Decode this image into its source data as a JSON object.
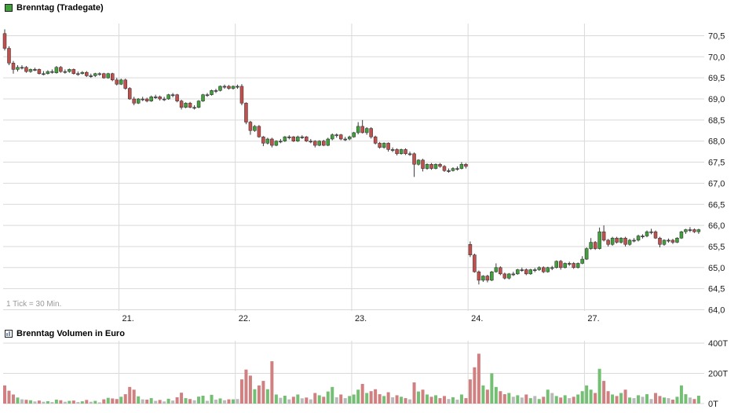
{
  "colors": {
    "grid": "#d9d9d9",
    "axis_text": "#1a1a1a"
  },
  "chart_data": [
    {
      "type": "candlestick",
      "title": "Brenntag (Tradegate)",
      "note": "1 Tick = 30 Min.",
      "interval_per_tick_minutes": 30,
      "legend_position": "top-left",
      "grid": true,
      "y_axis": {
        "min": 64.0,
        "max": 70.75,
        "tick_step": 0.5,
        "ticks": [
          {
            "v": 70.5,
            "label": "70,5"
          },
          {
            "v": 70.0,
            "label": "70,0"
          },
          {
            "v": 69.5,
            "label": "69,5"
          },
          {
            "v": 69.0,
            "label": "69,0"
          },
          {
            "v": 68.5,
            "label": "68,5"
          },
          {
            "v": 68.0,
            "label": "68,0"
          },
          {
            "v": 67.5,
            "label": "67,5"
          },
          {
            "v": 67.0,
            "label": "67,0"
          },
          {
            "v": 66.5,
            "label": "66,5"
          },
          {
            "v": 66.0,
            "label": "66,0"
          },
          {
            "v": 65.5,
            "label": "65,5"
          },
          {
            "v": 65.0,
            "label": "65,0"
          },
          {
            "v": 64.5,
            "label": "64,5"
          },
          {
            "v": 64.0,
            "label": "64,0"
          }
        ]
      },
      "x_axis": {
        "days": [
          {
            "index": 27,
            "label": "21."
          },
          {
            "index": 54,
            "label": "22."
          },
          {
            "index": 81,
            "label": "23."
          },
          {
            "index": 108,
            "label": "24."
          },
          {
            "index": 135,
            "label": "27."
          }
        ]
      },
      "colors": {
        "up": "#41a03c",
        "down": "#c0504d",
        "doji": "#5a5a5a",
        "wick": "#3a3a3a"
      },
      "candles": [
        [
          70.55,
          70.65,
          70.15,
          70.2
        ],
        [
          70.2,
          70.25,
          69.8,
          69.85
        ],
        [
          69.85,
          69.9,
          69.6,
          69.7
        ],
        [
          69.7,
          69.8,
          69.65,
          69.75
        ],
        [
          69.75,
          69.8,
          69.7,
          69.75
        ],
        [
          69.75,
          69.78,
          69.62,
          69.65
        ],
        [
          69.65,
          69.72,
          69.62,
          69.7
        ],
        [
          69.7,
          69.74,
          69.66,
          69.7
        ],
        [
          69.7,
          69.72,
          69.58,
          69.6
        ],
        [
          69.6,
          69.66,
          69.56,
          69.6
        ],
        [
          69.6,
          69.68,
          69.58,
          69.65
        ],
        [
          69.65,
          69.7,
          69.6,
          69.65
        ],
        [
          69.62,
          69.78,
          69.6,
          69.75
        ],
        [
          69.75,
          69.78,
          69.62,
          69.65
        ],
        [
          69.65,
          69.7,
          69.6,
          69.65
        ],
        [
          69.65,
          69.72,
          69.62,
          69.7
        ],
        [
          69.7,
          69.72,
          69.58,
          69.6
        ],
        [
          69.6,
          69.65,
          69.55,
          69.6
        ],
        [
          69.6,
          69.66,
          69.58,
          69.63
        ],
        [
          69.63,
          69.66,
          69.52,
          69.55
        ],
        [
          69.55,
          69.6,
          69.5,
          69.55
        ],
        [
          69.55,
          69.62,
          69.52,
          69.6
        ],
        [
          69.6,
          69.63,
          69.55,
          69.6
        ],
        [
          69.6,
          69.62,
          69.48,
          69.5
        ],
        [
          69.5,
          69.62,
          69.48,
          69.6
        ],
        [
          69.6,
          69.62,
          69.42,
          69.45
        ],
        [
          69.45,
          69.5,
          69.32,
          69.35
        ],
        [
          69.35,
          69.48,
          69.33,
          69.45
        ],
        [
          69.45,
          69.48,
          69.22,
          69.25
        ],
        [
          69.25,
          69.28,
          68.98,
          69.0
        ],
        [
          69.0,
          69.05,
          68.85,
          68.9
        ],
        [
          68.9,
          69.02,
          68.88,
          69.0
        ],
        [
          69.0,
          69.05,
          68.95,
          69.0
        ],
        [
          69.0,
          69.03,
          68.92,
          68.95
        ],
        [
          68.95,
          69.08,
          68.93,
          69.05
        ],
        [
          69.05,
          69.1,
          69.0,
          69.05
        ],
        [
          69.05,
          69.08,
          68.96,
          69.0
        ],
        [
          69.0,
          69.05,
          68.95,
          69.0
        ],
        [
          69.0,
          69.12,
          68.98,
          69.1
        ],
        [
          69.1,
          69.14,
          69.04,
          69.1
        ],
        [
          69.1,
          69.12,
          68.92,
          68.95
        ],
        [
          68.95,
          68.98,
          68.75,
          68.8
        ],
        [
          68.8,
          68.92,
          68.78,
          68.9
        ],
        [
          68.9,
          68.93,
          68.78,
          68.8
        ],
        [
          68.8,
          68.85,
          68.75,
          68.8
        ],
        [
          68.8,
          68.97,
          68.78,
          68.95
        ],
        [
          68.95,
          69.12,
          68.93,
          69.1
        ],
        [
          69.1,
          69.14,
          69.05,
          69.1
        ],
        [
          69.1,
          69.22,
          69.08,
          69.2
        ],
        [
          69.2,
          69.24,
          69.14,
          69.2
        ],
        [
          69.2,
          69.32,
          69.18,
          69.3
        ],
        [
          69.3,
          69.34,
          69.24,
          69.3
        ],
        [
          69.3,
          69.33,
          69.22,
          69.25
        ],
        [
          69.25,
          69.32,
          69.22,
          69.3
        ],
        [
          69.3,
          69.34,
          69.24,
          69.3
        ],
        [
          69.3,
          69.35,
          68.85,
          68.9
        ],
        [
          68.9,
          68.92,
          68.4,
          68.45
        ],
        [
          68.45,
          68.48,
          68.15,
          68.25
        ],
        [
          68.25,
          68.38,
          68.22,
          68.35
        ],
        [
          68.35,
          68.38,
          68.08,
          68.1
        ],
        [
          68.1,
          68.12,
          67.88,
          67.95
        ],
        [
          67.95,
          68.08,
          67.92,
          68.05
        ],
        [
          68.05,
          68.08,
          67.85,
          67.9
        ],
        [
          67.9,
          68.02,
          67.88,
          68.0
        ],
        [
          68.0,
          68.05,
          67.95,
          68.0
        ],
        [
          68.0,
          68.12,
          67.98,
          68.1
        ],
        [
          68.1,
          68.14,
          68.04,
          68.1
        ],
        [
          68.1,
          68.12,
          67.98,
          68.0
        ],
        [
          68.0,
          68.13,
          67.98,
          68.1
        ],
        [
          68.1,
          68.14,
          68.05,
          68.1
        ],
        [
          68.1,
          68.12,
          67.98,
          68.0
        ],
        [
          68.0,
          68.05,
          67.95,
          68.0
        ],
        [
          68.0,
          68.02,
          67.85,
          67.9
        ],
        [
          67.9,
          68.02,
          67.88,
          68.0
        ],
        [
          68.0,
          68.03,
          67.88,
          67.9
        ],
        [
          67.9,
          68.08,
          67.88,
          68.05
        ],
        [
          68.05,
          68.18,
          68.02,
          68.15
        ],
        [
          68.15,
          68.18,
          68.08,
          68.15
        ],
        [
          68.15,
          68.17,
          68.02,
          68.05
        ],
        [
          68.05,
          68.1,
          68.0,
          68.05
        ],
        [
          68.05,
          68.13,
          68.02,
          68.1
        ],
        [
          68.1,
          68.22,
          68.08,
          68.2
        ],
        [
          68.2,
          68.45,
          68.16,
          68.35
        ],
        [
          68.35,
          68.5,
          68.18,
          68.2
        ],
        [
          68.2,
          68.33,
          68.15,
          68.3
        ],
        [
          68.3,
          68.33,
          68.06,
          68.1
        ],
        [
          68.1,
          68.13,
          67.92,
          67.95
        ],
        [
          67.95,
          67.98,
          67.82,
          67.85
        ],
        [
          67.85,
          67.97,
          67.82,
          67.95
        ],
        [
          67.95,
          67.97,
          67.75,
          67.8
        ],
        [
          67.8,
          67.85,
          67.74,
          67.8
        ],
        [
          67.8,
          67.83,
          67.66,
          67.7
        ],
        [
          67.7,
          67.82,
          67.68,
          67.8
        ],
        [
          67.8,
          67.83,
          67.67,
          67.7
        ],
        [
          67.7,
          67.75,
          67.65,
          67.7
        ],
        [
          67.7,
          67.73,
          67.15,
          67.45
        ],
        [
          67.45,
          67.57,
          67.42,
          67.55
        ],
        [
          67.55,
          67.58,
          67.28,
          67.35
        ],
        [
          67.35,
          67.47,
          67.32,
          67.45
        ],
        [
          67.45,
          67.48,
          67.32,
          67.35
        ],
        [
          67.35,
          67.47,
          67.33,
          67.45
        ],
        [
          67.45,
          67.48,
          67.37,
          67.4
        ],
        [
          67.4,
          67.43,
          67.27,
          67.3
        ],
        [
          67.3,
          67.35,
          67.25,
          67.3
        ],
        [
          67.3,
          67.38,
          67.28,
          67.35
        ],
        [
          67.35,
          67.4,
          67.3,
          67.35
        ],
        [
          67.35,
          67.5,
          67.33,
          67.45
        ],
        [
          67.45,
          67.48,
          67.35,
          67.4
        ],
        [
          65.55,
          65.62,
          65.25,
          65.3
        ],
        [
          65.3,
          65.33,
          64.88,
          64.9
        ],
        [
          64.9,
          64.93,
          64.6,
          64.7
        ],
        [
          64.7,
          64.82,
          64.66,
          64.8
        ],
        [
          64.8,
          64.83,
          64.65,
          64.7
        ],
        [
          64.7,
          64.92,
          64.68,
          64.9
        ],
        [
          64.9,
          65.1,
          64.88,
          65.0
        ],
        [
          65.0,
          65.03,
          64.82,
          64.85
        ],
        [
          64.85,
          64.88,
          64.72,
          64.75
        ],
        [
          64.75,
          64.87,
          64.72,
          64.85
        ],
        [
          64.85,
          64.9,
          64.8,
          64.85
        ],
        [
          64.85,
          64.97,
          64.83,
          64.95
        ],
        [
          64.95,
          65.0,
          64.9,
          64.95
        ],
        [
          64.95,
          64.98,
          64.82,
          64.85
        ],
        [
          64.85,
          64.97,
          64.83,
          64.95
        ],
        [
          64.95,
          64.99,
          64.89,
          64.95
        ],
        [
          64.95,
          65.03,
          64.92,
          65.0
        ],
        [
          65.0,
          65.03,
          64.87,
          64.9
        ],
        [
          64.9,
          65.02,
          64.88,
          65.0
        ],
        [
          65.0,
          65.04,
          64.94,
          65.0
        ],
        [
          65.0,
          65.17,
          64.98,
          65.15
        ],
        [
          65.15,
          65.18,
          64.95,
          65.0
        ],
        [
          65.0,
          65.12,
          64.98,
          65.1
        ],
        [
          65.1,
          65.14,
          65.04,
          65.1
        ],
        [
          65.1,
          65.13,
          64.97,
          65.0
        ],
        [
          65.0,
          65.12,
          64.98,
          65.1
        ],
        [
          65.1,
          65.27,
          65.08,
          65.2
        ],
        [
          65.2,
          65.48,
          65.18,
          65.45
        ],
        [
          65.45,
          65.7,
          65.42,
          65.6
        ],
        [
          65.6,
          65.63,
          65.42,
          65.45
        ],
        [
          65.45,
          65.95,
          65.43,
          65.85
        ],
        [
          65.85,
          66.0,
          65.62,
          65.65
        ],
        [
          65.65,
          65.68,
          65.5,
          65.55
        ],
        [
          65.55,
          65.73,
          65.52,
          65.7
        ],
        [
          65.7,
          65.73,
          65.57,
          65.6
        ],
        [
          65.6,
          65.72,
          65.57,
          65.7
        ],
        [
          65.7,
          65.73,
          65.5,
          65.55
        ],
        [
          65.55,
          65.68,
          65.52,
          65.65
        ],
        [
          65.65,
          65.7,
          65.6,
          65.65
        ],
        [
          65.65,
          65.78,
          65.62,
          65.75
        ],
        [
          65.75,
          65.79,
          65.69,
          65.75
        ],
        [
          65.75,
          65.88,
          65.72,
          65.85
        ],
        [
          65.85,
          65.92,
          65.79,
          65.85
        ],
        [
          65.85,
          65.88,
          65.68,
          65.7
        ],
        [
          65.7,
          65.73,
          65.48,
          65.55
        ],
        [
          65.55,
          65.67,
          65.52,
          65.65
        ],
        [
          65.65,
          65.69,
          65.59,
          65.65
        ],
        [
          65.65,
          65.68,
          65.56,
          65.6
        ],
        [
          65.6,
          65.72,
          65.58,
          65.7
        ],
        [
          65.7,
          65.87,
          65.68,
          65.85
        ],
        [
          65.85,
          65.92,
          65.8,
          65.9
        ],
        [
          65.9,
          65.96,
          65.84,
          65.9
        ],
        [
          65.9,
          65.93,
          65.82,
          65.85
        ],
        [
          65.85,
          65.92,
          65.8,
          65.9
        ]
      ]
    },
    {
      "type": "bar",
      "title": "Brenntag Volumen in Euro",
      "unit": "T",
      "y_axis": {
        "min": 0,
        "max": 400,
        "ticks": [
          {
            "v": 400,
            "label": "400T"
          },
          {
            "v": 200,
            "label": "200T"
          },
          {
            "v": 0,
            "label": "0T"
          }
        ]
      },
      "colors": {
        "up": "#74bf74",
        "down": "#d08080",
        "neutral": "#b9b9b9"
      },
      "values": [
        120,
        85,
        60,
        40,
        28,
        25,
        22,
        14,
        20,
        12,
        16,
        10,
        26,
        22,
        12,
        18,
        20,
        10,
        15,
        24,
        12,
        18,
        8,
        28,
        38,
        34,
        30,
        45,
        62,
        110,
        92,
        48,
        28,
        26,
        36,
        18,
        24,
        14,
        32,
        20,
        42,
        72,
        36,
        30,
        22,
        46,
        52,
        18,
        58,
        26,
        34,
        22,
        28,
        28,
        30,
        160,
        225,
        185,
        95,
        120,
        150,
        95,
        280,
        60,
        38,
        52,
        28,
        45,
        60,
        35,
        40,
        28,
        70,
        55,
        45,
        80,
        110,
        42,
        60,
        36,
        50,
        60,
        92,
        130,
        70,
        82,
        95,
        62,
        50,
        75,
        42,
        55,
        45,
        36,
        28,
        140,
        80,
        92,
        60,
        45,
        55,
        36,
        50,
        30,
        42,
        26,
        60,
        36,
        160,
        240,
        330,
        120,
        92,
        200,
        110,
        82,
        62,
        70,
        45,
        55,
        40,
        60,
        36,
        50,
        30,
        45,
        92,
        70,
        50,
        40,
        55,
        36,
        45,
        60,
        82,
        120,
        92,
        70,
        230,
        150,
        82,
        60,
        50,
        70,
        92,
        40,
        36,
        55,
        45,
        62,
        30,
        70,
        50,
        40,
        36,
        26,
        45,
        120,
        62,
        40,
        30,
        52
      ]
    }
  ]
}
